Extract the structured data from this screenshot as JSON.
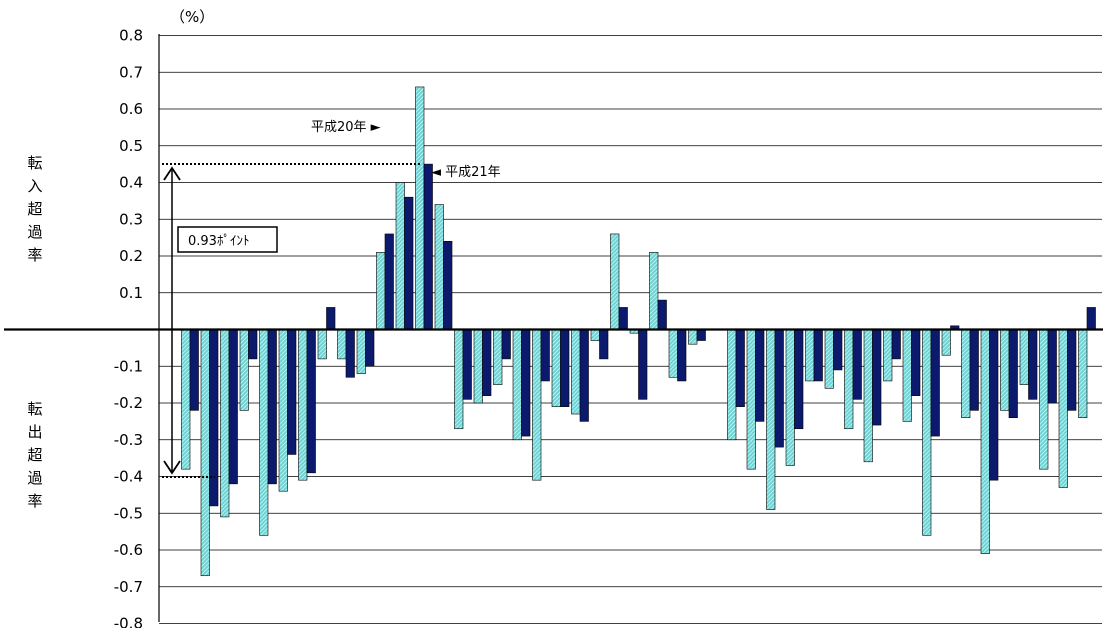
{
  "chart_data": {
    "type": "bar",
    "unit": "（%）",
    "ylim": [
      -0.8,
      0.8
    ],
    "y_ticks": [
      "0.8",
      "0.7",
      "0.6",
      "0.5",
      "0.4",
      "0.3",
      "0.2",
      "0.1",
      "-0.1",
      "-0.2",
      "-0.3",
      "-0.4",
      "-0.5",
      "-0.6",
      "-0.7",
      "-0.8"
    ],
    "grid": true,
    "ylabel_positive": "転入超過率",
    "ylabel_negative": "転出超過率",
    "colors": {
      "series1": "#6fd0d0",
      "series1_hatch": "#a8ecec",
      "series2": "#0c1a6e",
      "axis": "#000000"
    },
    "series": [
      {
        "name": "平成20年",
        "values": [
          -0.38,
          -0.67,
          -0.51,
          -0.22,
          -0.56,
          -0.44,
          -0.41,
          -0.08,
          -0.08,
          -0.12,
          0.21,
          0.4,
          0.66,
          0.34,
          -0.27,
          -0.2,
          -0.15,
          -0.3,
          -0.41,
          -0.21,
          -0.23,
          -0.03,
          0.26,
          -0.01,
          0.21,
          -0.13,
          -0.04,
          null,
          -0.3,
          -0.38,
          -0.49,
          -0.37,
          -0.14,
          -0.16,
          -0.27,
          -0.36,
          -0.14,
          -0.25,
          -0.56,
          -0.07,
          -0.24,
          -0.61,
          -0.22,
          -0.15,
          -0.38,
          -0.43,
          -0.24
        ]
      },
      {
        "name": "平成21年",
        "values": [
          -0.22,
          -0.48,
          -0.42,
          -0.08,
          -0.42,
          -0.34,
          -0.39,
          0.06,
          -0.13,
          -0.1,
          0.26,
          0.36,
          0.45,
          0.24,
          -0.19,
          -0.18,
          -0.08,
          -0.29,
          -0.14,
          -0.21,
          -0.25,
          -0.08,
          0.06,
          -0.19,
          0.08,
          -0.14,
          -0.03,
          null,
          -0.21,
          -0.25,
          -0.32,
          -0.27,
          -0.14,
          -0.11,
          -0.19,
          -0.26,
          -0.08,
          -0.18,
          -0.29,
          0.01,
          -0.22,
          -0.41,
          -0.24,
          -0.19,
          -0.2,
          -0.22,
          0.06
        ]
      }
    ],
    "annotations": {
      "series1_label": "平成20年 ►",
      "series2_label": "◄ 平成21年",
      "gap_label": "0.93ﾎﾟｲﾝﾄ"
    }
  }
}
